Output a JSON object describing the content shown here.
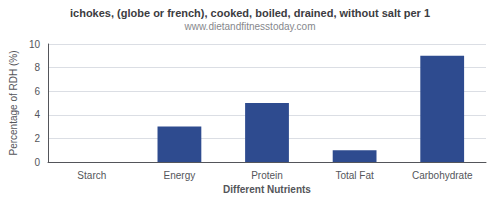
{
  "chart_data": {
    "type": "bar",
    "title": "ichokes, (globe or french), cooked, boiled, drained, without salt per 1",
    "subtitle": "www.dietandfitnesstoday.com",
    "categories": [
      "Starch",
      "Energy",
      "Protein",
      "Total Fat",
      "Carbohydrate"
    ],
    "values": [
      0,
      3,
      5,
      1,
      9
    ],
    "color": "#2e4b8f",
    "xlabel": "Different Nutrients",
    "ylabel": "Percentage of RDH (%)",
    "ylim": [
      0,
      10
    ],
    "yticks": [
      0,
      2,
      4,
      6,
      8,
      10
    ],
    "grid": true
  }
}
